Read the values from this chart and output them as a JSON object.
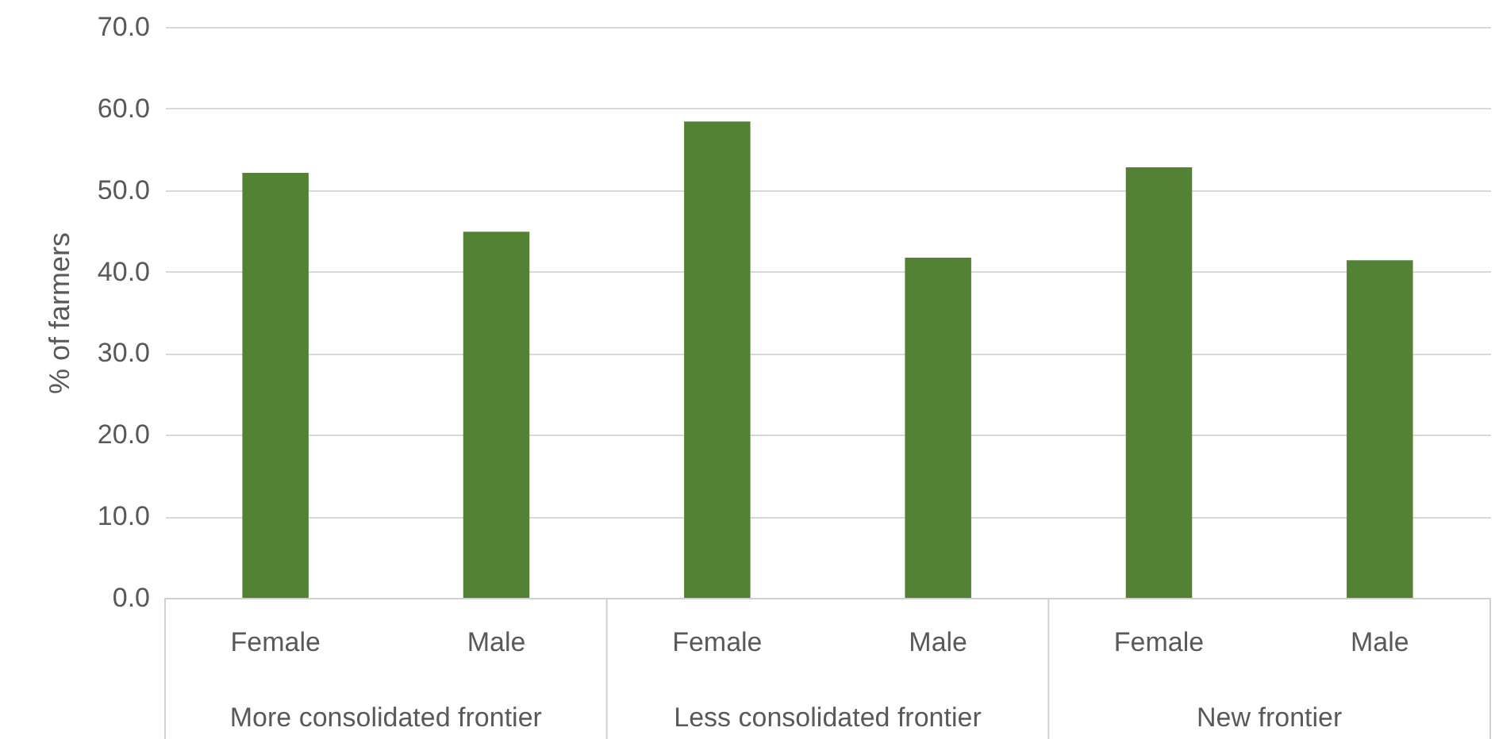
{
  "chart_data": {
    "type": "bar",
    "ylabel": "% of farmers",
    "categories": [
      "Female",
      "Male",
      "Female",
      "Male",
      "Female",
      "Male"
    ],
    "values": [
      52.1,
      44.9,
      58.4,
      41.7,
      52.8,
      41.4
    ],
    "color": "#548235",
    "ylim": [
      0,
      70
    ],
    "yticks": [
      {
        "value": 0,
        "label": "0.0"
      },
      {
        "value": 10,
        "label": "10.0"
      },
      {
        "value": 20,
        "label": "20.0"
      },
      {
        "value": 30,
        "label": "30.0"
      },
      {
        "value": 40,
        "label": "40.0"
      },
      {
        "value": 50,
        "label": "50.0"
      },
      {
        "value": 60,
        "label": "60.0"
      },
      {
        "value": 70,
        "label": "70.0"
      }
    ],
    "grid": "y",
    "annotations": [
      "More consolidated frontier",
      "Less consolidated frontier",
      "New frontier"
    ]
  }
}
